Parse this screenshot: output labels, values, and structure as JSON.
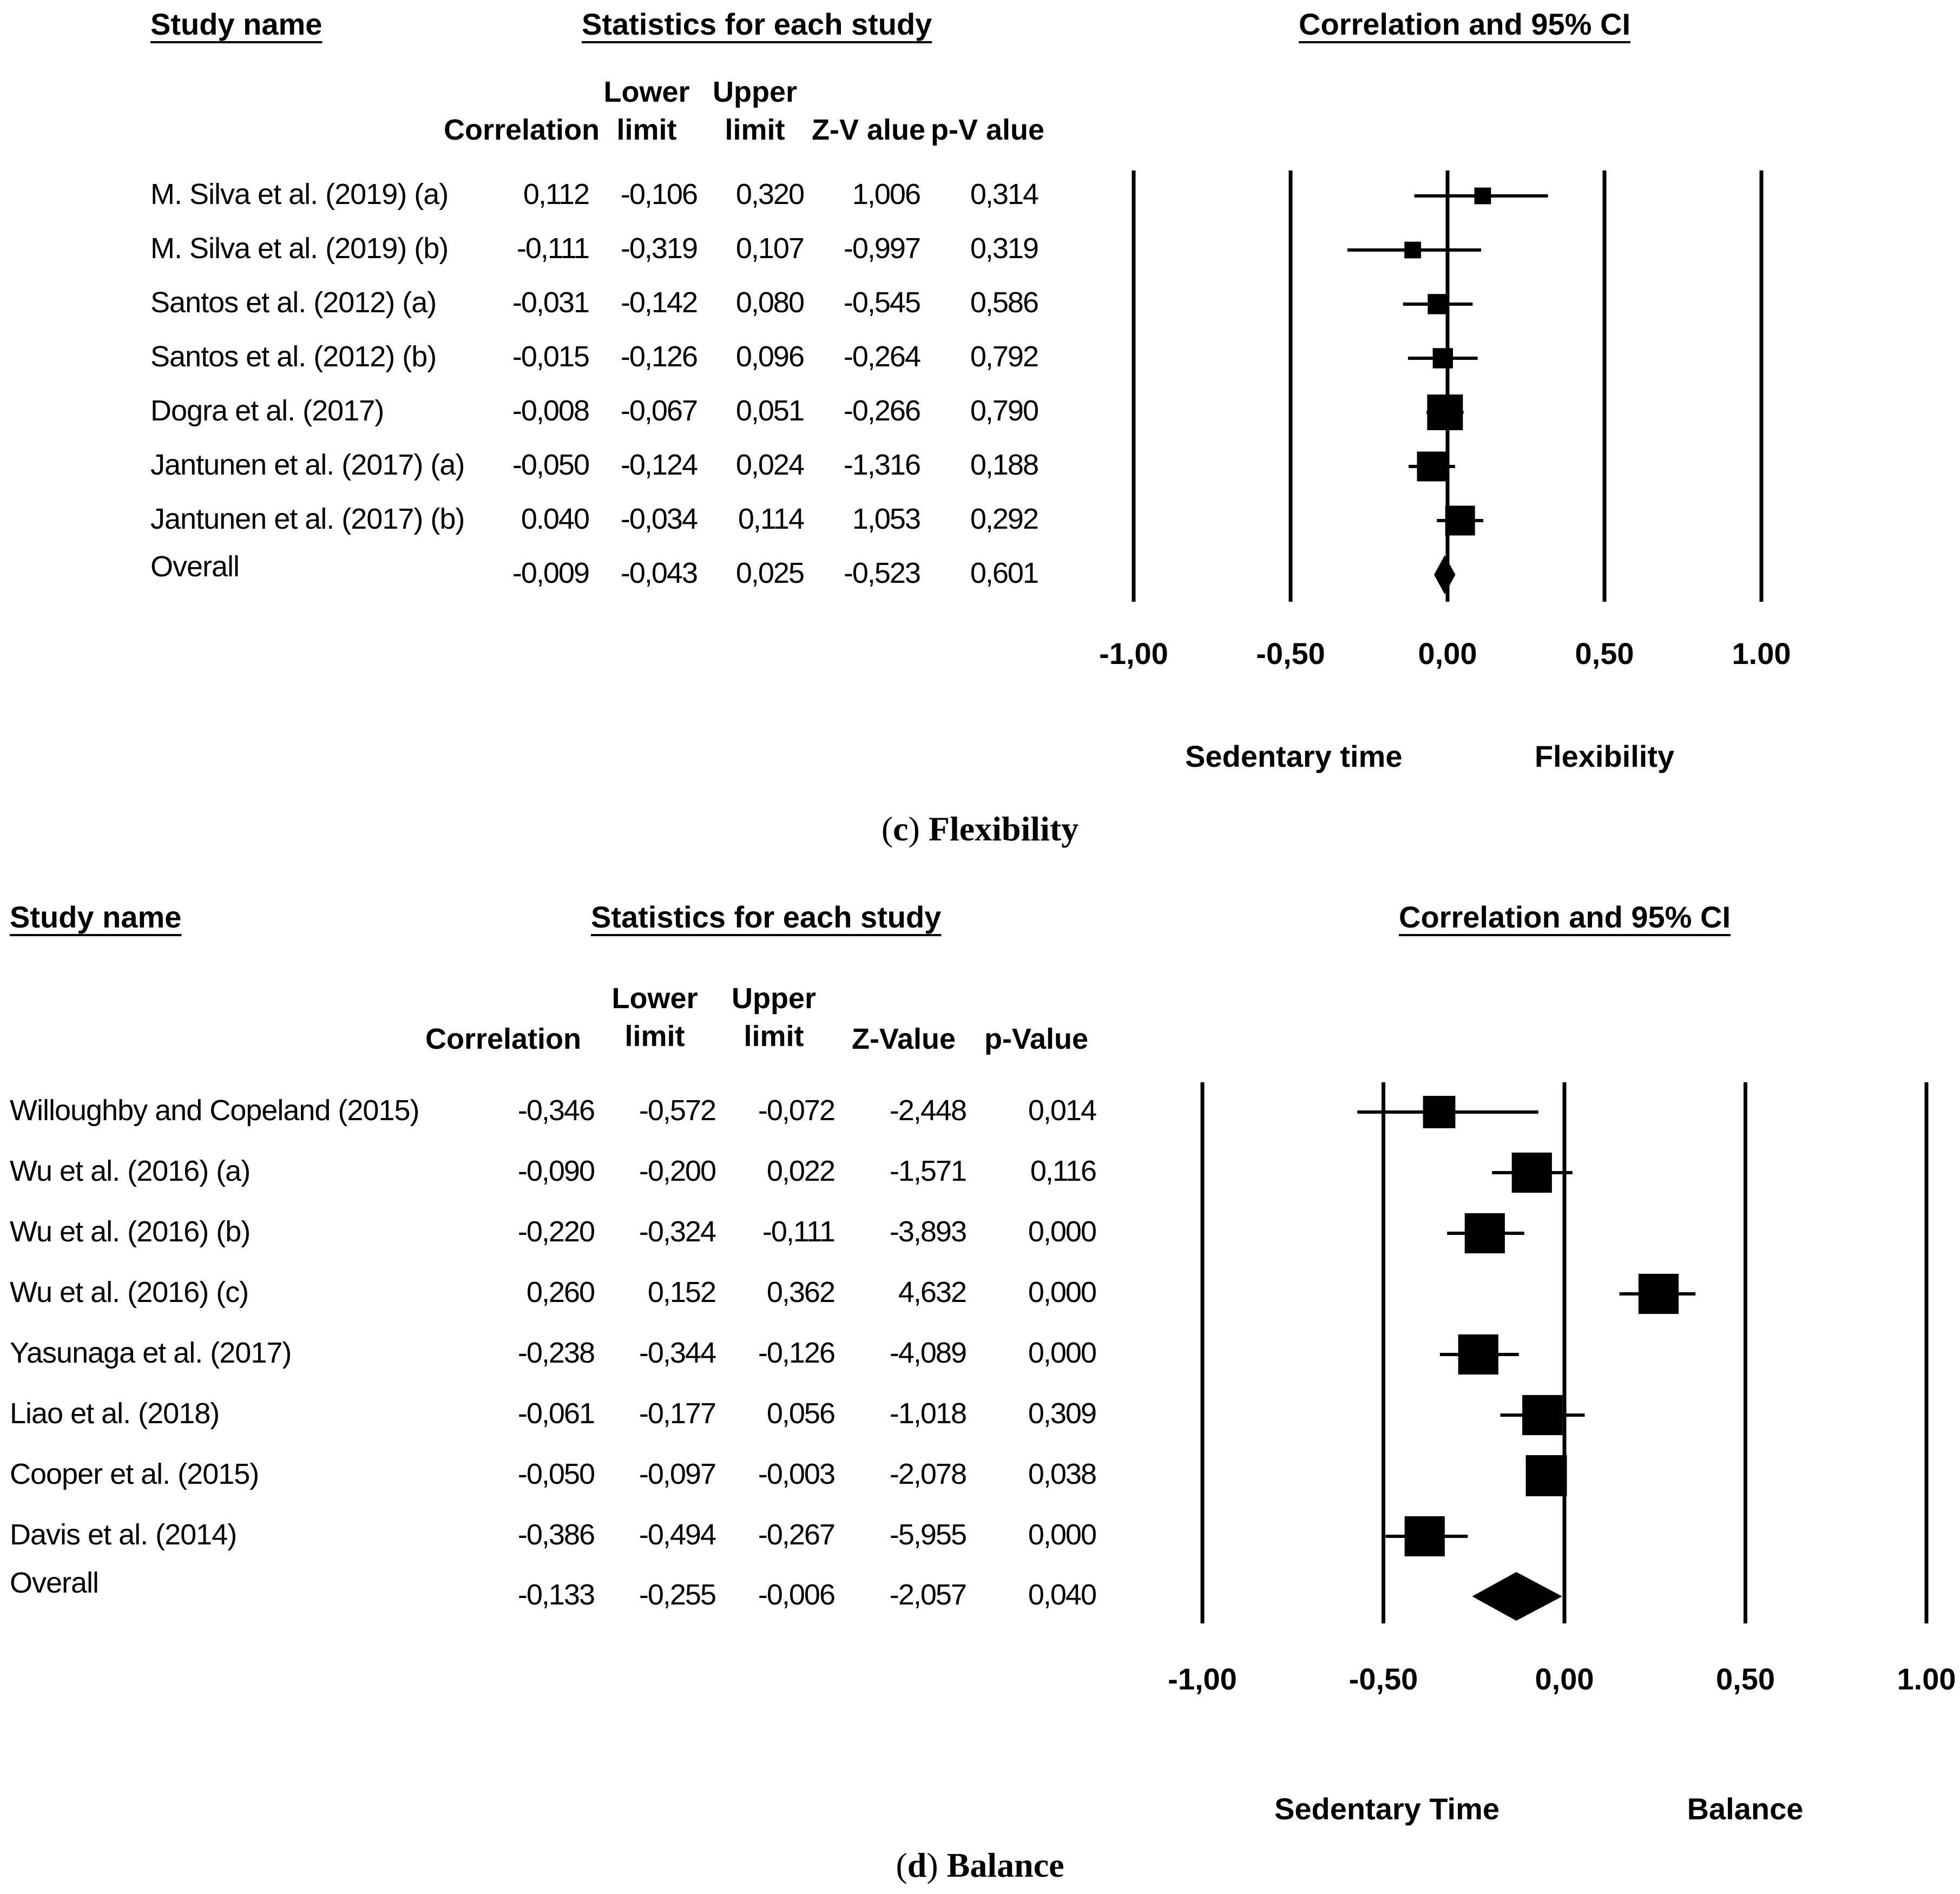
{
  "chart_data": [
    {
      "type": "forest",
      "panel_label": "c",
      "caption": "Flexibility",
      "headers": {
        "study_name": "Study name",
        "statistics": "Statistics for each study",
        "plot": "Correlation and 95% CI"
      },
      "columns": {
        "correlation": "Correlation",
        "lower": [
          "Lower",
          "limit"
        ],
        "upper": [
          "Upper",
          "limit"
        ],
        "z": "Z-V alue",
        "p": "p-V alue"
      },
      "rows": [
        {
          "study": "M. Silva et al. (2019) (a)",
          "correlation": "0,112",
          "lower": "-0,106",
          "upper": "0,320",
          "z": "1,006",
          "p": "0,314",
          "r": 0.112,
          "lo": -0.106,
          "hi": 0.32,
          "weight": 0.2
        },
        {
          "study": "M. Silva et al. (2019) (b)",
          "correlation": "-0,111",
          "lower": "-0,319",
          "upper": "0,107",
          "z": "-0,997",
          "p": "0,319",
          "r": -0.111,
          "lo": -0.319,
          "hi": 0.107,
          "weight": 0.2
        },
        {
          "study": "Santos et al. (2012) (a)",
          "correlation": "-0,031",
          "lower": "-0,142",
          "upper": "0,080",
          "z": "-0,545",
          "p": "0,586",
          "r": -0.031,
          "lo": -0.142,
          "hi": 0.08,
          "weight": 0.35
        },
        {
          "study": "Santos et al. (2012) (b)",
          "correlation": "-0,015",
          "lower": "-0,126",
          "upper": "0,096",
          "z": "-0,264",
          "p": "0,792",
          "r": -0.015,
          "lo": -0.126,
          "hi": 0.096,
          "weight": 0.35
        },
        {
          "study": "Dogra et al. (2017)",
          "correlation": "-0,008",
          "lower": "-0,067",
          "upper": "0,051",
          "z": "-0,266",
          "p": "0,790",
          "r": -0.008,
          "lo": -0.067,
          "hi": 0.051,
          "weight": 1.0
        },
        {
          "study": "Jantunen et al. (2017) (a)",
          "correlation": "-0,050",
          "lower": "-0,124",
          "upper": "0,024",
          "z": "-1,316",
          "p": "0,188",
          "r": -0.05,
          "lo": -0.124,
          "hi": 0.024,
          "weight": 0.75
        },
        {
          "study": "Jantunen et al. (2017) (b)",
          "correlation": "0.040",
          "lower": "-0,034",
          "upper": "0,114",
          "z": "1,053",
          "p": "0,292",
          "r": 0.04,
          "lo": -0.034,
          "hi": 0.114,
          "weight": 0.75
        }
      ],
      "overall": {
        "study": "Overall",
        "correlation": "-0,009",
        "lower": "-0,043",
        "upper": "0,025",
        "z": "-0,523",
        "p": "0,601",
        "r": -0.009,
        "lo": -0.043,
        "hi": 0.025
      },
      "x_ticks": [
        {
          "value": -1.0,
          "label": "-1,00"
        },
        {
          "value": -0.5,
          "label": "-0,50"
        },
        {
          "value": 0.0,
          "label": "0,00"
        },
        {
          "value": 0.5,
          "label": "0,50"
        },
        {
          "value": 1.0,
          "label": "1.00"
        }
      ],
      "xlim": [
        -1,
        1
      ],
      "direction_labels": {
        "left": "Sedentary time",
        "right": "Flexibility"
      }
    },
    {
      "type": "forest",
      "panel_label": "d",
      "caption": "Balance",
      "headers": {
        "study_name": "Study name",
        "statistics": "Statistics for each study",
        "plot": "Correlation and 95% CI"
      },
      "columns": {
        "correlation": "Correlation",
        "lower": [
          "Lower",
          "limit"
        ],
        "upper": [
          "Upper",
          "limit"
        ],
        "z": "Z-Value",
        "p": "p-Value"
      },
      "rows": [
        {
          "study": "Willoughby and Copeland (2015)",
          "correlation": "-0,346",
          "lower": "-0,572",
          "upper": "-0,072",
          "z": "-2,448",
          "p": "0,014",
          "r": -0.346,
          "lo": -0.572,
          "hi": -0.072,
          "weight": 0.55
        },
        {
          "study": "Wu et al. (2016) (a)",
          "correlation": "-0,090",
          "lower": "-0,200",
          "upper": "0,022",
          "z": "-1,571",
          "p": "0,116",
          "r": -0.09,
          "lo": -0.2,
          "hi": 0.022,
          "weight": 0.95
        },
        {
          "study": "Wu et al. (2016) (b)",
          "correlation": "-0,220",
          "lower": "-0,324",
          "upper": "-0,111",
          "z": "-3,893",
          "p": "0,000",
          "r": -0.22,
          "lo": -0.324,
          "hi": -0.111,
          "weight": 0.95
        },
        {
          "study": "Wu et al. (2016) (c)",
          "correlation": "0,260",
          "lower": "0,152",
          "upper": "0,362",
          "z": "4,632",
          "p": "0,000",
          "r": 0.26,
          "lo": 0.152,
          "hi": 0.362,
          "weight": 0.95
        },
        {
          "study": "Yasunaga et al. (2017)",
          "correlation": "-0,238",
          "lower": "-0,344",
          "upper": "-0,126",
          "z": "-4,089",
          "p": "0,000",
          "r": -0.238,
          "lo": -0.344,
          "hi": -0.126,
          "weight": 0.95
        },
        {
          "study": "Liao et al. (2018)",
          "correlation": "-0,061",
          "lower": "-0,177",
          "upper": "0,056",
          "z": "-1,018",
          "p": "0,309",
          "r": -0.061,
          "lo": -0.177,
          "hi": 0.056,
          "weight": 0.95
        },
        {
          "study": "Cooper et al. (2015)",
          "correlation": "-0,050",
          "lower": "-0,097",
          "upper": "-0,003",
          "z": "-2,078",
          "p": "0,038",
          "r": -0.05,
          "lo": -0.097,
          "hi": -0.003,
          "weight": 1.0
        },
        {
          "study": "Davis et al. (2014)",
          "correlation": "-0,386",
          "lower": "-0,494",
          "upper": "-0,267",
          "z": "-5,955",
          "p": "0,000",
          "r": -0.386,
          "lo": -0.494,
          "hi": -0.267,
          "weight": 0.95
        }
      ],
      "overall": {
        "study": "Overall",
        "correlation": "-0,133",
        "lower": "-0,255",
        "upper": "-0,006",
        "z": "-2,057",
        "p": "0,040",
        "r": -0.133,
        "lo": -0.255,
        "hi": -0.006
      },
      "x_ticks": [
        {
          "value": -1.0,
          "label": "-1,00"
        },
        {
          "value": -0.5,
          "label": "-0,50"
        },
        {
          "value": 0.0,
          "label": "0,00"
        },
        {
          "value": 0.5,
          "label": "0,50"
        },
        {
          "value": 1.0,
          "label": "1.00"
        }
      ],
      "xlim": [
        -1,
        1
      ],
      "direction_labels": {
        "left": "Sedentary Time",
        "right": "Balance"
      }
    }
  ]
}
